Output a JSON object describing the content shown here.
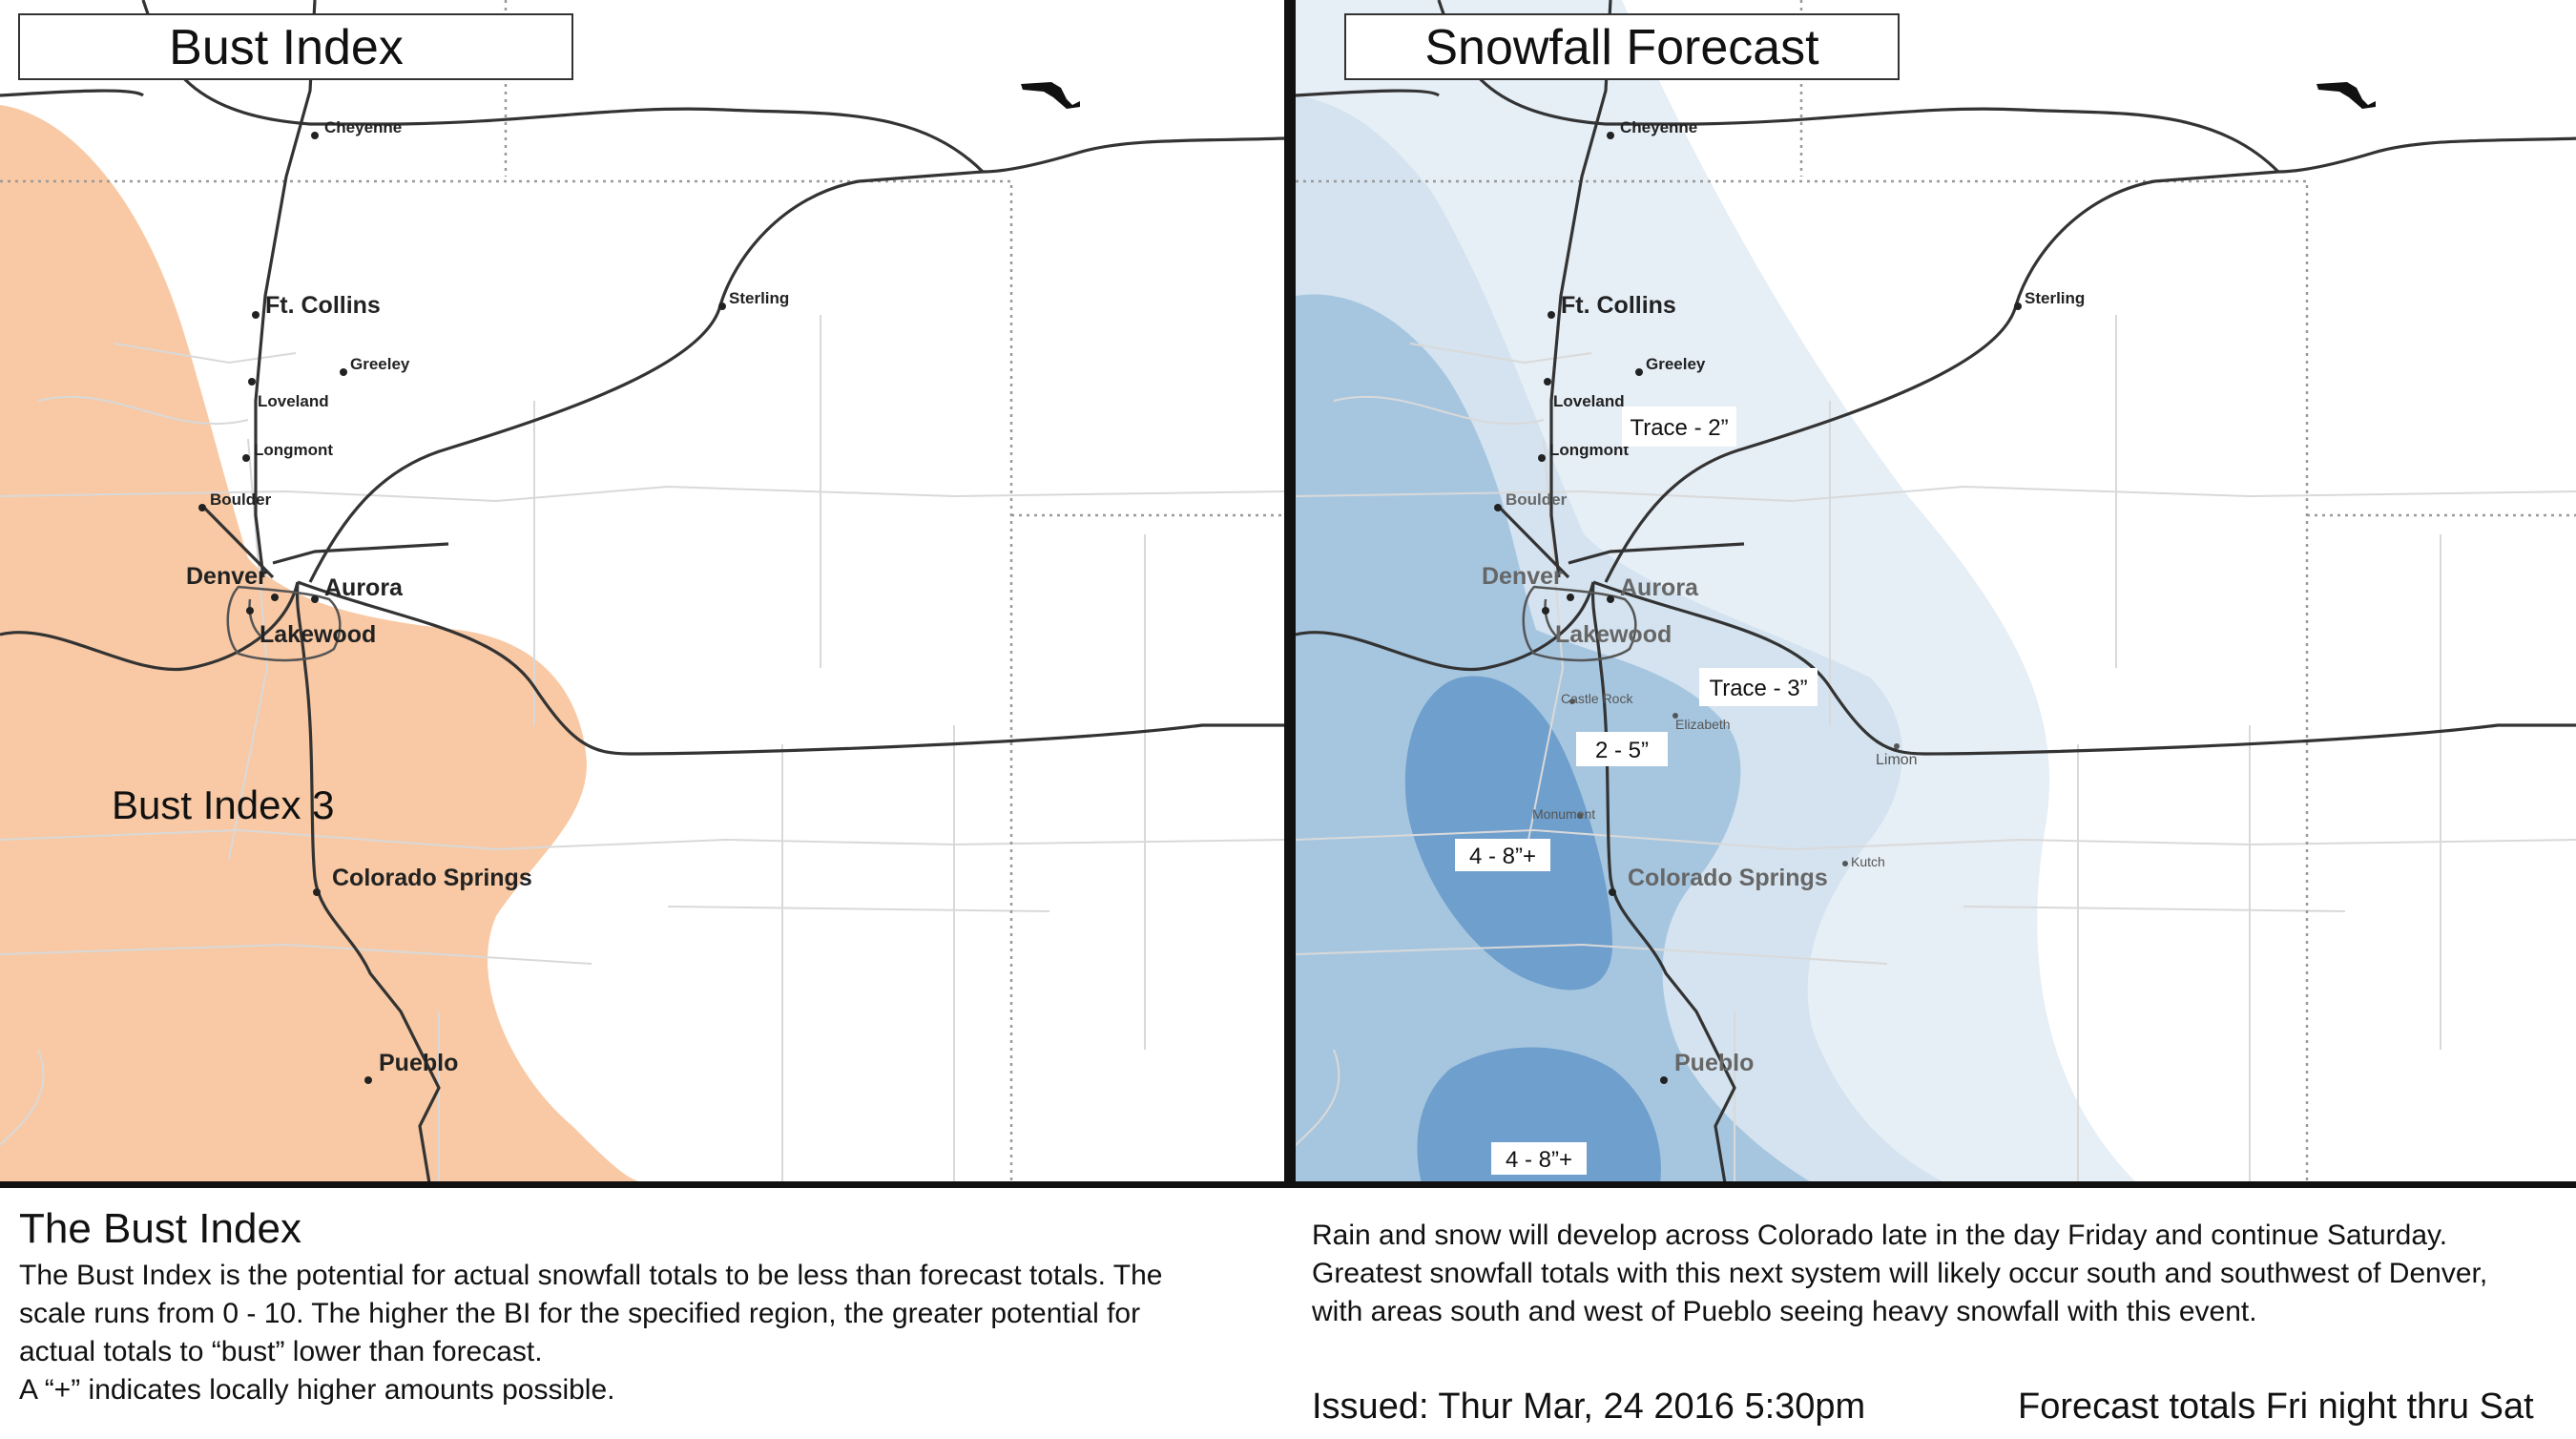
{
  "left_panel": {
    "title": "Bust Index",
    "region_label": "Bust Index 3"
  },
  "right_panel": {
    "title": "Snowfall Forecast",
    "zone_labels": [
      "Trace - 2”",
      "Trace - 3”",
      "2 - 5”",
      "4 - 8”+",
      "4 - 8”+"
    ]
  },
  "cities": {
    "cheyenne": "Cheyenne",
    "ft_collins": "Ft. Collins",
    "greeley": "Greeley",
    "loveland": "Loveland",
    "longmont": "Longmont",
    "boulder": "Boulder",
    "denver": "Denver",
    "aurora": "Aurora",
    "lakewood": "Lakewood",
    "sterling": "Sterling",
    "colorado_springs": "Colorado Springs",
    "pueblo": "Pueblo",
    "castle_rock": "Castle Rock",
    "elizabeth": "Elizabeth",
    "limon": "Limon",
    "monument": "Monument",
    "kutch": "Kutch"
  },
  "footer": {
    "bust_heading": "The Bust Index",
    "bust_lines": [
      "The Bust Index is the potential for actual snowfall totals to be less than forecast totals. The",
      "scale runs from 0 - 10. The higher the BI for the specified region, the greater potential for",
      "actual totals to “bust” lower than forecast.",
      "A “+” indicates locally higher amounts possible."
    ],
    "forecast_lines": [
      "Rain and snow will develop across Colorado late in the day Friday and continue Saturday.",
      "Greatest snowfall totals with this next system will likely occur south and southwest of Denver,",
      "with areas south and west of Pueblo seeing heavy snowfall with this event."
    ],
    "issued": "Issued: Thur Mar, 24 2016 5:30pm",
    "period": "Forecast totals Fri night thru Sat"
  },
  "colors": {
    "bust_fill": "#f8c9a4",
    "snow_trace2": "#e6eef6",
    "snow_trace3": "#d4e3ef",
    "snow_2_5": "#a6c6e0",
    "snow_4_8": "#6f9fcc",
    "divider": "#111111"
  }
}
